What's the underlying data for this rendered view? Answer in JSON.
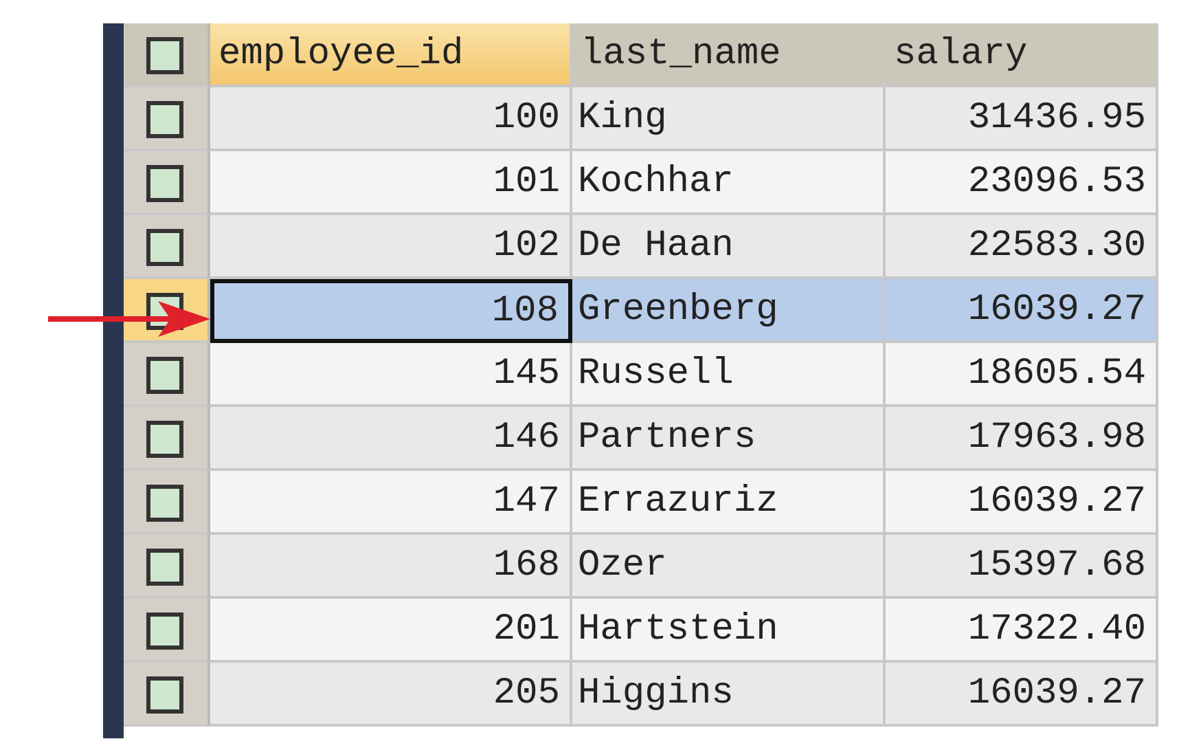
{
  "columns": [
    "employee_id",
    "last_name",
    "salary"
  ],
  "rows": [
    {
      "employee_id": "100",
      "last_name": "King",
      "salary": "31436.95"
    },
    {
      "employee_id": "101",
      "last_name": "Kochhar",
      "salary": "23096.53"
    },
    {
      "employee_id": "102",
      "last_name": "De Haan",
      "salary": "22583.30"
    },
    {
      "employee_id": "108",
      "last_name": "Greenberg",
      "salary": "16039.27"
    },
    {
      "employee_id": "145",
      "last_name": "Russell",
      "salary": "18605.54"
    },
    {
      "employee_id": "146",
      "last_name": "Partners",
      "salary": "17963.98"
    },
    {
      "employee_id": "147",
      "last_name": "Errazuriz",
      "salary": "16039.27"
    },
    {
      "employee_id": "168",
      "last_name": "Ozer",
      "salary": "15397.68"
    },
    {
      "employee_id": "201",
      "last_name": "Hartstein",
      "salary": "17322.40"
    },
    {
      "employee_id": "205",
      "last_name": "Higgins",
      "salary": "16039.27"
    }
  ],
  "selected_row_index": 3,
  "colors": {
    "row_marker_border": "#333333",
    "row_marker_fill": "#cfe6cf",
    "selection": "#b8cdea",
    "arrow": "#e0202a"
  }
}
